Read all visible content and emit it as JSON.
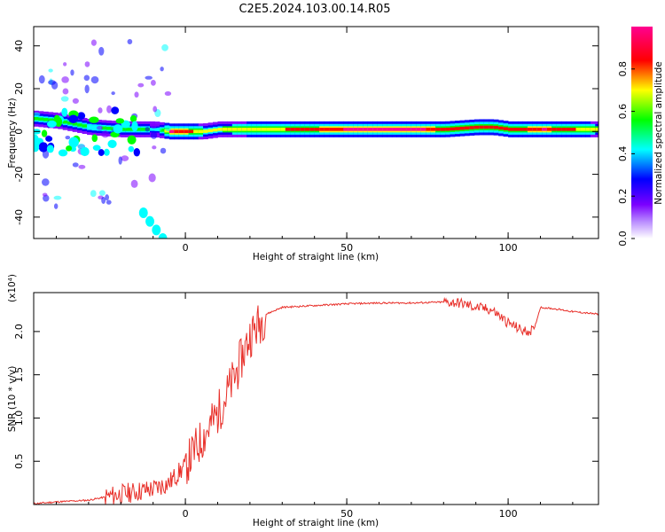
{
  "title": "C2E5.2024.103.00.14.R05",
  "chart_data": [
    {
      "type": "heatmap",
      "xlabel": "Height of straight line (km)",
      "ylabel": "Frequency (Hz)",
      "xlim": [
        -47,
        128
      ],
      "ylim": [
        -50,
        49
      ],
      "xticks": [
        0,
        50,
        100
      ],
      "yticks": [
        -40,
        -20,
        0,
        20,
        40
      ],
      "colorbar": {
        "label": "Normalized spectral amplitude",
        "range": [
          0,
          1
        ],
        "ticks": [
          "0.0",
          "0.2",
          "0.4",
          "0.6",
          "0.8"
        ],
        "colormap": [
          "#ffffff",
          "#7b00ff",
          "#0000ff",
          "#00ffff",
          "#00ff00",
          "#ffff00",
          "#ff0000",
          "#ff00a0"
        ]
      },
      "ridge": {
        "x": [
          -47,
          -40,
          -30,
          -20,
          -15,
          -10,
          -5,
          0,
          5,
          10,
          20,
          30,
          40,
          50,
          60,
          70,
          80,
          90,
          95,
          100,
          110,
          120,
          128
        ],
        "frequency": [
          6,
          5,
          2,
          1,
          1,
          1,
          0,
          0,
          0,
          1,
          1,
          1,
          1,
          1,
          1,
          1,
          1,
          2,
          2,
          1,
          1,
          1,
          1
        ],
        "amplitude": [
          0.45,
          0.5,
          0.4,
          0.45,
          0.55,
          0.3,
          0.85,
          0.8,
          0.6,
          0.6,
          0.65,
          0.7,
          0.8,
          0.85,
          0.9,
          0.9,
          0.75,
          0.7,
          0.8,
          0.75,
          0.85,
          0.7,
          0.6
        ]
      },
      "secondary_branch": {
        "x": [
          -13,
          -11,
          -9,
          -7
        ],
        "frequency": [
          -38,
          -42,
          -46,
          -50
        ]
      }
    },
    {
      "type": "line",
      "xlabel": "Height of straight line (km)",
      "ylabel": "SNR (10 * v/v)",
      "scale_note": "(x10⁴)",
      "xlim": [
        -47,
        128
      ],
      "ylim": [
        0,
        2.45
      ],
      "xticks": [
        0,
        50,
        100
      ],
      "yticks": [
        0.5,
        1.0,
        1.5,
        2.0
      ],
      "color": "#e8302a",
      "series": [
        {
          "x": [
            -47,
            -40,
            -30,
            -20,
            -15,
            -10,
            -5,
            0,
            5,
            10,
            15,
            20,
            25,
            30,
            40,
            50,
            60,
            70,
            80,
            85,
            90,
            95,
            100,
            105,
            108,
            110,
            115,
            120,
            128
          ],
          "values": [
            0.01,
            0.03,
            0.05,
            0.12,
            0.15,
            0.18,
            0.25,
            0.45,
            0.75,
            1.05,
            1.45,
            1.95,
            2.2,
            2.28,
            2.3,
            2.32,
            2.33,
            2.33,
            2.34,
            2.33,
            2.28,
            2.25,
            2.1,
            2.0,
            2.02,
            2.28,
            2.26,
            2.23,
            2.2
          ]
        }
      ]
    }
  ]
}
